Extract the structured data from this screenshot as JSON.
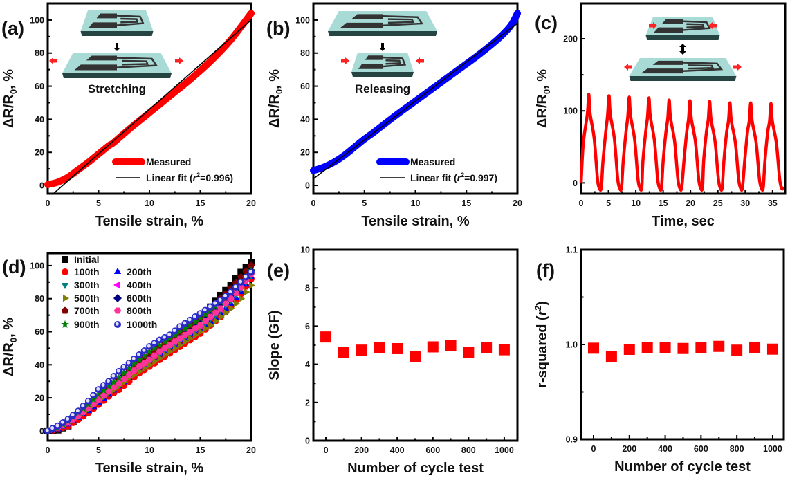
{
  "chart_data": [
    {
      "panel": "(a)",
      "type": "line",
      "xlabel": "Tensile strain, %",
      "ylabel_main": "ΔR/R",
      "ylabel_sub": "0",
      "ylabel_tail": ", %",
      "xlim": [
        0,
        20
      ],
      "ylim": [
        -5,
        110
      ],
      "xticks": [
        0,
        5,
        10,
        15,
        20
      ],
      "yticks": [
        0,
        20,
        40,
        60,
        80,
        100
      ],
      "inset_label": "Stretching",
      "inset_mode": "stretch",
      "series": [
        {
          "name": "Measured",
          "color": "#ff0000",
          "x": [
            0,
            1,
            2,
            3,
            4,
            5,
            6,
            6.5,
            8,
            10,
            12,
            14,
            16,
            18,
            20
          ],
          "y": [
            0.5,
            2,
            5,
            9.5,
            14,
            19,
            24,
            26,
            34,
            44,
            54,
            64,
            75,
            88,
            104
          ]
        },
        {
          "name": "Linear fit",
          "color": "#000000",
          "fit": {
            "slope": 5.4,
            "intercept": -8
          },
          "r2": "0.996"
        }
      ],
      "legend": {
        "measured": "Measured",
        "fit_prefix": "Linear fit (",
        "fit_r": "r",
        "fit_sup": "2",
        "fit_suffix": "=0.996)"
      }
    },
    {
      "panel": "(b)",
      "type": "line",
      "xlabel": "Tensile strain, %",
      "ylabel_main": "ΔR/R",
      "ylabel_sub": "0",
      "ylabel_tail": ", %",
      "xlim": [
        0,
        20
      ],
      "ylim": [
        -5,
        110
      ],
      "xticks": [
        0,
        5,
        10,
        15,
        20
      ],
      "yticks": [
        0,
        20,
        40,
        60,
        80,
        100
      ],
      "inset_label": "Releasing",
      "inset_mode": "release",
      "series": [
        {
          "name": "Measured",
          "color": "#0000ff",
          "x": [
            0,
            1,
            2,
            3,
            4,
            5,
            6,
            8,
            10,
            12,
            14,
            16,
            18,
            19,
            19.5,
            20
          ],
          "y": [
            9,
            11,
            14,
            18,
            23,
            28,
            32.5,
            42,
            51,
            60,
            69,
            78,
            88,
            94,
            98,
            104
          ]
        },
        {
          "name": "Linear fit",
          "color": "#000000",
          "fit": {
            "slope": 4.7,
            "intercept": 4
          },
          "r2": "0.997"
        }
      ],
      "legend": {
        "measured": "Measured",
        "fit_prefix": "Linear fit (",
        "fit_r": "r",
        "fit_sup": "2",
        "fit_suffix": "=0.997)"
      }
    },
    {
      "panel": "(c)",
      "type": "line",
      "xlabel": "Time, sec",
      "ylabel_main": "ΔR/R",
      "ylabel_sub": "0",
      "ylabel_tail": ", %",
      "xlim": [
        0,
        37.3
      ],
      "ylim": [
        -15,
        249
      ],
      "xticks": [
        0,
        5,
        10,
        15,
        20,
        25,
        30,
        35
      ],
      "yticks": [
        0,
        100,
        200
      ],
      "color": "#ff0000",
      "peaks_t": [
        1.4,
        5.1,
        8.8,
        12.4,
        16.1,
        19.9,
        23.5,
        27.2,
        31.0,
        34.7
      ],
      "peaks_v": [
        123,
        121,
        119,
        118,
        115,
        114,
        113,
        111,
        111,
        110
      ],
      "valley_v": -8
    },
    {
      "panel": "(d)",
      "type": "scatter",
      "xlabel": "Tensile strain, %",
      "ylabel_main": "ΔR/R",
      "ylabel_sub": "0",
      "ylabel_tail": ", %",
      "xlim": [
        0,
        20
      ],
      "ylim": [
        -5.9,
        107.5
      ],
      "xticks": [
        0,
        5,
        10,
        15,
        20
      ],
      "yticks": [
        0,
        20,
        40,
        60,
        80,
        100
      ],
      "x": [
        0,
        1,
        2,
        3,
        4,
        5,
        6,
        7,
        8,
        9,
        10,
        11,
        12,
        13,
        14,
        15,
        16,
        17,
        18,
        19,
        20
      ],
      "series": [
        {
          "name": "Initial",
          "marker": "square",
          "color": "#000000",
          "y": [
            0,
            0.5,
            3,
            8,
            13,
            18,
            23,
            28,
            33,
            38,
            43,
            48,
            53,
            58,
            63,
            69,
            75,
            82,
            88,
            96,
            102
          ]
        },
        {
          "name": "100th",
          "marker": "circle",
          "color": "#ff0000",
          "y": [
            0,
            1,
            3,
            7,
            11,
            16,
            21,
            25,
            30,
            35,
            39,
            43,
            47,
            51,
            55,
            59,
            64,
            69,
            75,
            83,
            92
          ]
        },
        {
          "name": "200th",
          "marker": "triangle-up",
          "color": "#0000ff",
          "y": [
            0,
            1,
            4,
            8,
            12,
            17,
            22,
            27,
            32,
            37,
            41,
            45,
            49,
            53,
            57,
            61,
            66,
            71,
            77,
            84,
            93
          ]
        },
        {
          "name": "300th",
          "marker": "triangle-down",
          "color": "#008080",
          "y": [
            0,
            2,
            5,
            9,
            14,
            19,
            24,
            29,
            34,
            39,
            43,
            47,
            51,
            55,
            59,
            63,
            68,
            73,
            79,
            86,
            94
          ]
        },
        {
          "name": "400th",
          "marker": "triangle-left",
          "color": "#ff00ff",
          "y": [
            0,
            2,
            5,
            10,
            15,
            20,
            25,
            30,
            35,
            40,
            44,
            48,
            52,
            56,
            60,
            64,
            69,
            74,
            80,
            87,
            95
          ]
        },
        {
          "name": "500th",
          "marker": "triangle-right",
          "color": "#808000",
          "y": [
            0,
            2,
            5,
            9,
            13,
            18,
            23,
            27,
            32,
            36,
            40,
            44,
            48,
            52,
            56,
            60,
            64,
            69,
            74,
            80,
            88
          ]
        },
        {
          "name": "600th",
          "marker": "diamond",
          "color": "#000080",
          "y": [
            0,
            2,
            6,
            10,
            15,
            21,
            26,
            31,
            36,
            41,
            46,
            50,
            54,
            58,
            62,
            67,
            71,
            76,
            82,
            89,
            97
          ]
        },
        {
          "name": "700th",
          "marker": "pentagon",
          "color": "#800000",
          "y": [
            0,
            2,
            5,
            10,
            15,
            21,
            26,
            31,
            37,
            42,
            47,
            51,
            55,
            60,
            64,
            69,
            74,
            80,
            86,
            93,
            100
          ]
        },
        {
          "name": "800th",
          "marker": "hexagon",
          "color": "#ff3399",
          "y": [
            0,
            2,
            5,
            9,
            14,
            19,
            24,
            29,
            34,
            39,
            43,
            48,
            52,
            56,
            60,
            64,
            69,
            74,
            80,
            87,
            95
          ]
        },
        {
          "name": "900th",
          "marker": "star",
          "color": "#008000",
          "y": [
            0,
            2,
            6,
            11,
            16,
            22,
            27,
            32,
            38,
            43,
            48,
            52,
            56,
            60,
            64,
            68,
            73,
            78,
            84,
            90,
            97
          ]
        },
        {
          "name": "1000th",
          "marker": "sphere",
          "color": "#2a2ac8",
          "y": [
            0,
            3,
            7,
            12,
            18,
            25,
            30,
            36,
            41,
            46,
            51,
            55,
            58,
            63,
            67,
            71,
            75,
            79,
            84,
            90,
            96
          ]
        }
      ]
    },
    {
      "panel": "(e)",
      "type": "scatter",
      "xlabel": "Number of cycle test",
      "ylabel": "Slope (GF)",
      "xlim": [
        -70,
        1074
      ],
      "ylim": [
        0,
        10
      ],
      "xticks": [
        0,
        200,
        400,
        600,
        800,
        1000
      ],
      "yticks": [
        0,
        2,
        4,
        6,
        8,
        10
      ],
      "color": "#ff0000",
      "marker": "square",
      "x": [
        0,
        100,
        200,
        300,
        400,
        500,
        600,
        700,
        800,
        900,
        1000
      ],
      "y": [
        5.43,
        4.61,
        4.74,
        4.88,
        4.82,
        4.4,
        4.91,
        4.98,
        4.61,
        4.86,
        4.76
      ]
    },
    {
      "panel": "(f)",
      "type": "scatter",
      "xlabel": "Number of cycle test",
      "ylabel_prefix": "r-squared (",
      "ylabel_r": "r",
      "ylabel_sup": "2",
      "ylabel_suffix": ")",
      "xlim": [
        -69.5,
        1062
      ],
      "ylim": [
        0.9,
        1.1
      ],
      "xticks": [
        0,
        200,
        400,
        600,
        800,
        1000
      ],
      "yticks": [
        "0.9",
        "1.0",
        "1.1"
      ],
      "color": "#ff0000",
      "marker": "square",
      "x": [
        0,
        100,
        200,
        300,
        400,
        500,
        600,
        700,
        800,
        900,
        1000
      ],
      "y": [
        0.9961,
        0.987,
        0.9949,
        0.9969,
        0.9969,
        0.9958,
        0.9969,
        0.998,
        0.994,
        0.9971,
        0.9951
      ]
    }
  ]
}
